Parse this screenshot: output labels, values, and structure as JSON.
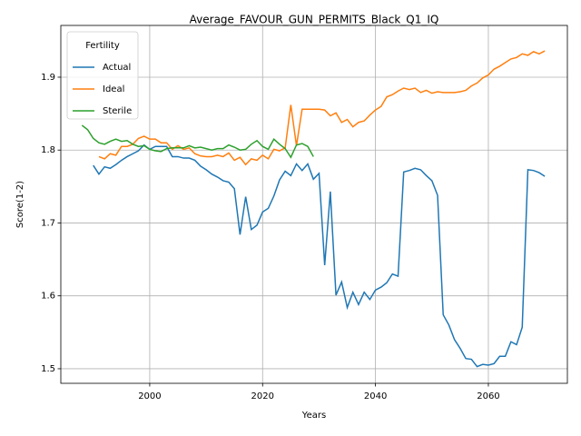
{
  "chart_data": {
    "type": "line",
    "title": "Average_FAVOUR_GUN_PERMITS_Black_Q1_IQ",
    "x_label": "Years",
    "y_label": "Score(1-2)",
    "legend_title": "Fertility",
    "legend_position": "upper left",
    "grid": true,
    "xlim": [
      1984.25,
      2074
    ],
    "ylim": [
      1.48,
      1.971
    ],
    "xticks": [
      2000,
      2020,
      2040,
      2060
    ],
    "yticks": [
      1.5,
      1.6,
      1.7,
      1.8,
      1.9
    ],
    "x": [
      1988,
      1989,
      1990,
      1991,
      1992,
      1993,
      1994,
      1995,
      1996,
      1997,
      1998,
      1999,
      2000,
      2001,
      2002,
      2003,
      2004,
      2005,
      2006,
      2007,
      2008,
      2009,
      2010,
      2011,
      2012,
      2013,
      2014,
      2015,
      2016,
      2017,
      2018,
      2019,
      2020,
      2021,
      2022,
      2023,
      2024,
      2025,
      2026,
      2027,
      2028,
      2029,
      2030,
      2031,
      2032,
      2033,
      2034,
      2035,
      2036,
      2037,
      2038,
      2039,
      2040,
      2041,
      2042,
      2043,
      2044,
      2045,
      2046,
      2047,
      2048,
      2049,
      2050,
      2051,
      2052,
      2053,
      2054,
      2055,
      2056,
      2057,
      2058,
      2059,
      2060,
      2061,
      2062,
      2063,
      2064,
      2065,
      2066,
      2067,
      2068,
      2069,
      2070
    ],
    "series": [
      {
        "name": "Actual",
        "color": "#1f77b4",
        "values": [
          null,
          null,
          1.779,
          1.767,
          1.777,
          1.775,
          1.78,
          1.786,
          1.791,
          1.795,
          1.799,
          1.807,
          1.801,
          1.805,
          1.805,
          1.805,
          1.791,
          1.791,
          1.789,
          1.789,
          1.786,
          1.778,
          1.773,
          1.767,
          1.763,
          1.758,
          1.756,
          1.747,
          1.684,
          1.736,
          1.691,
          1.697,
          1.715,
          1.72,
          1.737,
          1.759,
          1.771,
          1.765,
          1.781,
          1.772,
          1.781,
          1.76,
          1.768,
          1.642,
          1.743,
          1.601,
          1.619,
          1.584,
          1.605,
          1.588,
          1.605,
          1.595,
          1.608,
          1.612,
          1.618,
          1.63,
          1.627,
          1.77,
          1.772,
          1.775,
          1.773,
          1.765,
          1.758,
          1.738,
          1.574,
          1.56,
          1.54,
          1.528,
          1.514,
          1.513,
          1.503,
          1.506,
          1.505,
          1.507,
          1.517,
          1.517,
          1.537,
          1.533,
          1.557,
          1.773,
          1.772,
          1.769,
          1.764
        ]
      },
      {
        "name": "Ideal",
        "color": "#ff7f0e",
        "values": [
          null,
          null,
          null,
          1.791,
          1.788,
          1.795,
          1.793,
          1.805,
          1.805,
          1.808,
          1.816,
          1.819,
          1.815,
          1.815,
          1.81,
          1.81,
          1.801,
          1.806,
          1.801,
          1.803,
          1.795,
          1.792,
          1.791,
          1.791,
          1.793,
          1.791,
          1.796,
          1.786,
          1.79,
          1.78,
          1.788,
          1.786,
          1.793,
          1.788,
          1.801,
          1.799,
          1.803,
          1.862,
          1.806,
          1.856,
          1.856,
          1.856,
          1.856,
          1.855,
          1.847,
          1.851,
          1.838,
          1.842,
          1.832,
          1.838,
          1.84,
          1.848,
          1.855,
          1.86,
          1.873,
          1.876,
          1.881,
          1.885,
          1.883,
          1.885,
          1.879,
          1.882,
          1.878,
          1.88,
          1.879,
          1.879,
          1.879,
          1.88,
          1.882,
          1.888,
          1.892,
          1.899,
          1.903,
          1.911,
          1.915,
          1.92,
          1.925,
          1.927,
          1.932,
          1.93,
          1.935,
          1.932,
          1.936
        ]
      },
      {
        "name": "Sterile",
        "color": "#2ca02c",
        "values": [
          1.834,
          1.828,
          1.816,
          1.81,
          1.808,
          1.812,
          1.815,
          1.812,
          1.813,
          1.808,
          1.805,
          1.806,
          1.801,
          1.799,
          1.798,
          1.802,
          1.803,
          1.803,
          1.803,
          1.806,
          1.803,
          1.804,
          1.802,
          1.8,
          1.802,
          1.802,
          1.807,
          1.804,
          1.8,
          1.801,
          1.808,
          1.813,
          1.805,
          1.801,
          1.815,
          1.808,
          1.802,
          1.79,
          1.807,
          1.809,
          1.805,
          1.791,
          null,
          null,
          null,
          null,
          null,
          null,
          null,
          null,
          null,
          null,
          null,
          null,
          null,
          null,
          null,
          null,
          null,
          null,
          null,
          null,
          null,
          null,
          null,
          null,
          null,
          null,
          null,
          null,
          null,
          null,
          null,
          null,
          null,
          null,
          null,
          null,
          null,
          null,
          null,
          null,
          null
        ]
      }
    ]
  }
}
